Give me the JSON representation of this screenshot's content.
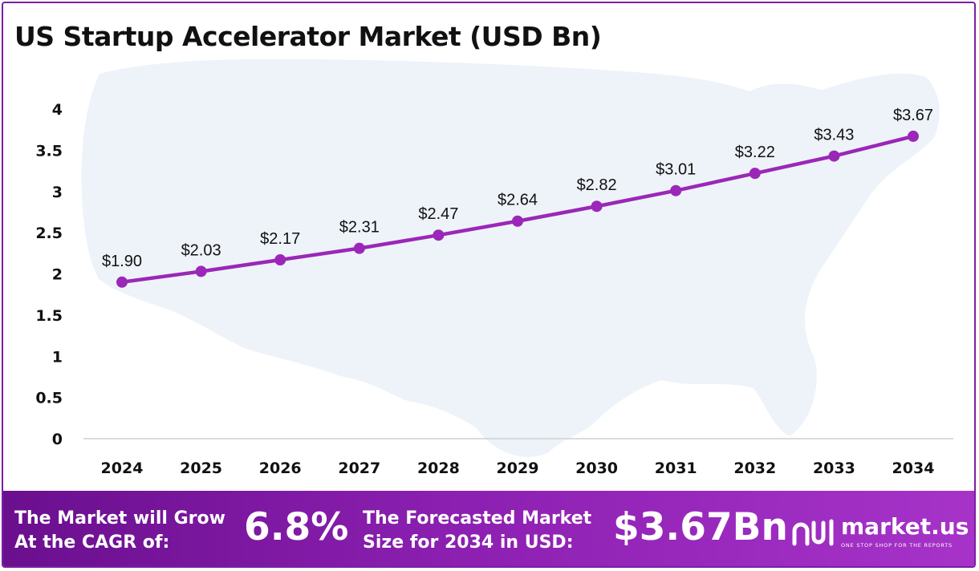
{
  "title": "US Startup Accelerator Market (USD Bn)",
  "chart_data": {
    "type": "line",
    "categories": [
      "2024",
      "2025",
      "2026",
      "2027",
      "2028",
      "2029",
      "2030",
      "2031",
      "2032",
      "2033",
      "2034"
    ],
    "values": [
      1.9,
      2.03,
      2.17,
      2.31,
      2.47,
      2.64,
      2.82,
      3.01,
      3.22,
      3.43,
      3.67
    ],
    "data_labels": [
      "$1.90",
      "$2.03",
      "$2.17",
      "$2.31",
      "$2.47",
      "$2.64",
      "$2.82",
      "$3.01",
      "$3.22",
      "$3.43",
      "$3.67"
    ],
    "yticks": [
      "0",
      "0.5",
      "1",
      "1.5",
      "2",
      "2.5",
      "3",
      "3.5",
      "4"
    ],
    "ylim": [
      0,
      4
    ],
    "grid": false,
    "line_color": "#9b27b8",
    "marker_color": "#9b27b8"
  },
  "banner": {
    "cagr_text_line1": "The Market will Grow",
    "cagr_text_line2": "At the CAGR of:",
    "cagr_value": "6.8%",
    "forecast_text_line1": "The Forecasted Market",
    "forecast_text_line2": "Size for 2034 in USD:",
    "forecast_value": "$3.67Bn",
    "brand": "market.us",
    "tagline": "ONE STOP SHOP FOR THE REPORTS"
  },
  "colors": {
    "brand_purple": "#7a1fa2",
    "map_fill": "#eef3f9"
  }
}
